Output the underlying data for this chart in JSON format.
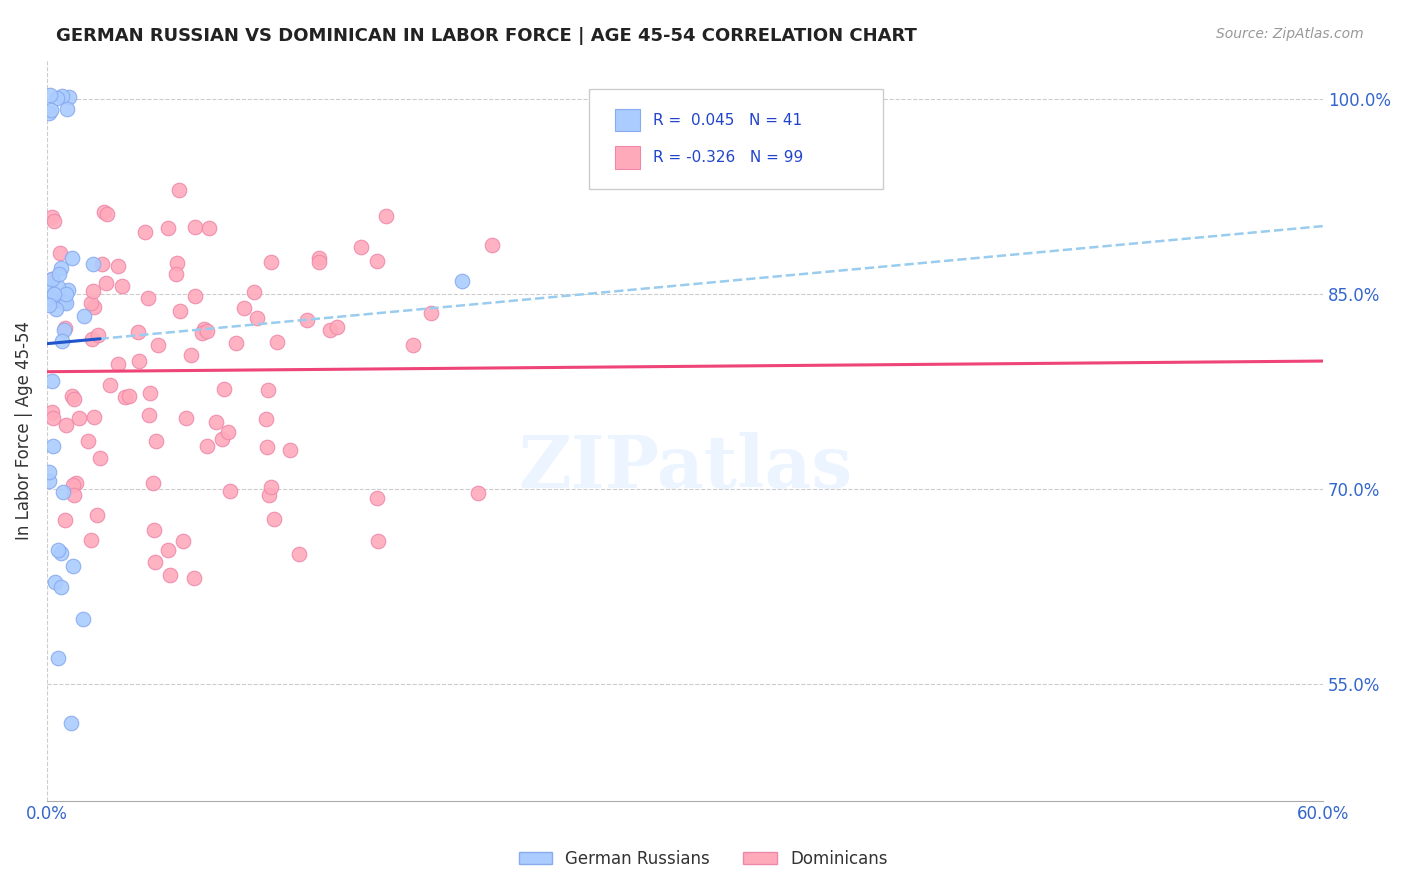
{
  "title": "GERMAN RUSSIAN VS DOMINICAN IN LABOR FORCE | AGE 45-54 CORRELATION CHART",
  "source": "Source: ZipAtlas.com",
  "ylabel": "In Labor Force | Age 45-54",
  "xmin": 0.0,
  "xmax": 0.6,
  "ymin": 0.46,
  "ymax": 1.03,
  "yticks": [
    0.55,
    0.7,
    0.85,
    1.0
  ],
  "ytick_labels": [
    "55.0%",
    "70.0%",
    "85.0%",
    "100.0%"
  ],
  "xticks": [
    0.0,
    0.1,
    0.2,
    0.3,
    0.4,
    0.5,
    0.6
  ],
  "xtick_labels": [
    "0.0%",
    "",
    "",
    "",
    "",
    "",
    "60.0%"
  ],
  "blue_R": 0.045,
  "blue_N": 41,
  "pink_R": -0.326,
  "pink_N": 99,
  "blue_dot_color": "#aaccff",
  "pink_dot_color": "#ffaabb",
  "blue_edge_color": "#88aaee",
  "pink_edge_color": "#ee88aa",
  "blue_line_color": "#2255cc",
  "pink_line_color": "#ee4477",
  "blue_dash_color": "#99ccee",
  "watermark": "ZIPatlas",
  "legend_R_color": "#2244cc"
}
